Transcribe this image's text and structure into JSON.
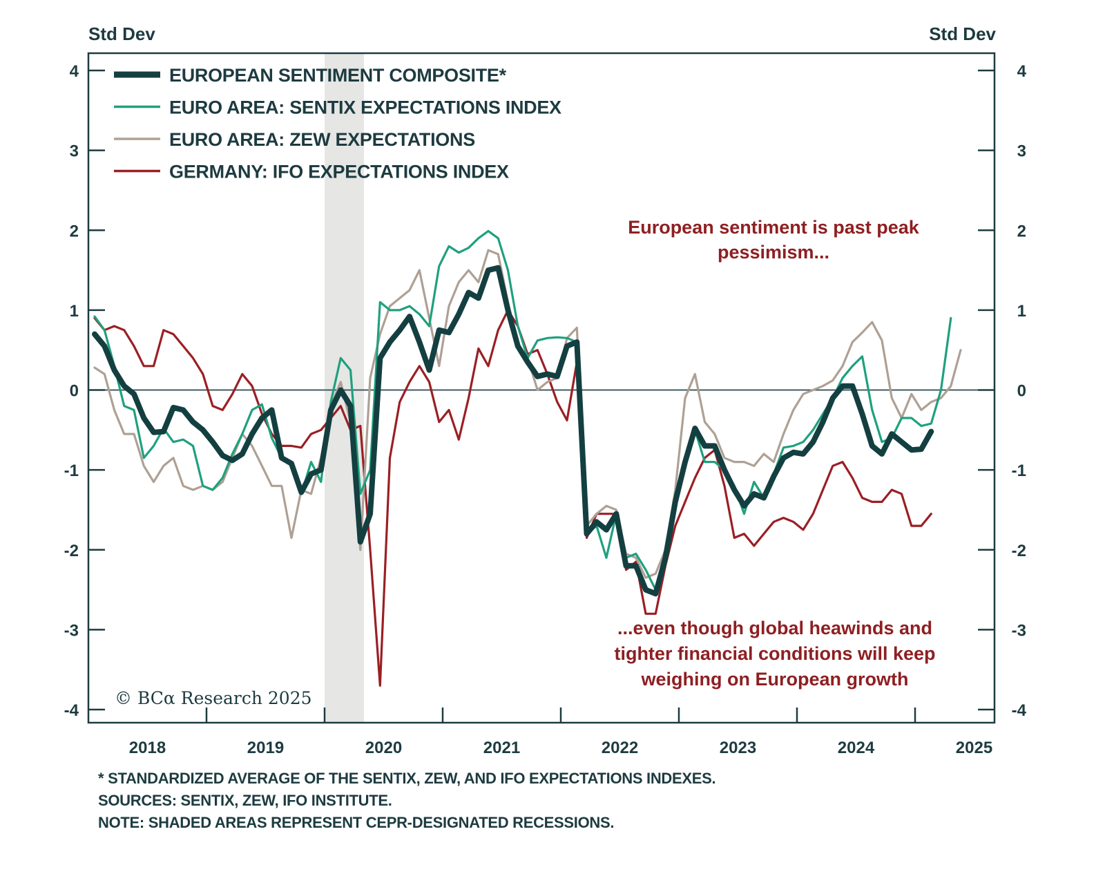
{
  "chart_data": {
    "type": "line",
    "title": "",
    "ylabel_left": "Std Dev",
    "ylabel_right": "Std Dev",
    "xlabel": "",
    "ylim": [
      -4,
      4
    ],
    "yticks": [
      4,
      3,
      2,
      1,
      0,
      -1,
      -2,
      -3,
      -4
    ],
    "ytick_labels": [
      "4",
      "3",
      "2",
      "1",
      "0",
      "-1",
      "-2",
      "-3",
      "-4"
    ],
    "x_start": "2018-01",
    "x_frequency": "monthly",
    "xlim": [
      "2018-01",
      "2025-08"
    ],
    "xtick_labels": [
      "2018",
      "2019",
      "2020",
      "2021",
      "2022",
      "2023",
      "2024",
      "2025"
    ],
    "zero_line": true,
    "grid": false,
    "legend_position": "top-left",
    "recessions": [
      {
        "start": "2020-01",
        "end": "2020-04"
      }
    ],
    "series": [
      {
        "name": "EUROPEAN SENTIMENT COMPOSITE*",
        "color": "#143f41",
        "weight": "thick",
        "values": [
          0.7,
          0.55,
          0.25,
          0.05,
          -0.05,
          -0.35,
          -0.53,
          -0.52,
          -0.22,
          -0.25,
          -0.4,
          -0.5,
          -0.65,
          -0.82,
          -0.88,
          -0.8,
          -0.55,
          -0.35,
          -0.25,
          -0.85,
          -0.92,
          -1.28,
          -1.05,
          -1.0,
          -0.25,
          0.0,
          -0.2,
          -1.9,
          -1.55,
          0.4,
          0.6,
          0.75,
          0.92,
          0.6,
          0.25,
          0.75,
          0.72,
          0.95,
          1.22,
          1.15,
          1.5,
          1.53,
          1.0,
          0.55,
          0.35,
          0.17,
          0.2,
          0.17,
          0.55,
          0.6,
          -1.8,
          -1.65,
          -1.75,
          -1.55,
          -2.2,
          -2.2,
          -2.5,
          -2.55,
          -2.1,
          -1.4,
          -0.9,
          -0.48,
          -0.7,
          -0.7,
          -1.0,
          -1.25,
          -1.45,
          -1.3,
          -1.35,
          -1.08,
          -0.85,
          -0.78,
          -0.8,
          -0.65,
          -0.4,
          -0.1,
          0.05,
          0.05,
          -0.3,
          -0.7,
          -0.8,
          -0.55,
          -0.65,
          -0.75,
          -0.74,
          -0.52
        ]
      },
      {
        "name": "EURO AREA: SENTIX EXPECTATIONS INDEX",
        "color": "#1fa07e",
        "weight": "thin",
        "values": [
          0.92,
          0.75,
          0.3,
          -0.2,
          -0.25,
          -0.85,
          -0.7,
          -0.48,
          -0.65,
          -0.62,
          -0.7,
          -1.2,
          -1.25,
          -1.1,
          -0.8,
          -0.55,
          -0.25,
          -0.18,
          -0.6,
          -0.85,
          -0.95,
          -1.3,
          -0.9,
          -1.15,
          -0.15,
          0.4,
          0.25,
          -1.3,
          -1.0,
          1.1,
          1.0,
          1.0,
          1.05,
          0.95,
          0.8,
          1.55,
          1.8,
          1.72,
          1.78,
          1.9,
          1.99,
          1.9,
          1.5,
          0.8,
          0.4,
          0.62,
          0.65,
          0.66,
          0.65,
          0.6,
          -1.8,
          -1.7,
          -2.1,
          -1.55,
          -2.1,
          -2.05,
          -2.25,
          -2.5,
          -2.1,
          -1.3,
          -0.9,
          -0.5,
          -0.9,
          -0.9,
          -1.0,
          -1.2,
          -1.55,
          -1.15,
          -1.35,
          -1.05,
          -0.72,
          -0.7,
          -0.65,
          -0.5,
          -0.3,
          -0.1,
          0.15,
          0.3,
          0.42,
          -0.25,
          -0.65,
          -0.6,
          -0.35,
          -0.35,
          -0.45,
          -0.42,
          0.0,
          0.9
        ]
      },
      {
        "name": "EURO AREA: ZEW EXPECTATIONS",
        "color": "#aea094",
        "weight": "thin",
        "values": [
          0.28,
          0.2,
          -0.25,
          -0.55,
          -0.55,
          -0.95,
          -1.15,
          -0.95,
          -0.85,
          -1.2,
          -1.25,
          -1.2,
          -1.25,
          -1.15,
          -0.85,
          -0.55,
          -0.7,
          -0.95,
          -1.2,
          -1.2,
          -1.85,
          -1.25,
          -1.3,
          -0.85,
          -0.2,
          0.1,
          -0.4,
          -2.0,
          0.15,
          0.7,
          1.05,
          1.15,
          1.25,
          1.5,
          0.9,
          0.3,
          1.05,
          1.35,
          1.5,
          1.35,
          1.75,
          1.7,
          1.1,
          0.55,
          0.4,
          0.0,
          0.1,
          0.15,
          0.65,
          0.78,
          -1.7,
          -1.55,
          -1.45,
          -1.5,
          -2.05,
          -2.1,
          -2.35,
          -2.3,
          -2.0,
          -1.25,
          -0.1,
          0.2,
          -0.4,
          -0.55,
          -0.85,
          -0.9,
          -0.9,
          -0.95,
          -0.8,
          -0.9,
          -0.55,
          -0.25,
          -0.05,
          0.0,
          0.05,
          0.12,
          0.3,
          0.6,
          0.72,
          0.85,
          0.62,
          -0.1,
          -0.35,
          -0.05,
          -0.25,
          -0.15,
          -0.1,
          0.05,
          0.5
        ]
      },
      {
        "name": "GERMANY: IFO EXPECTATIONS INDEX",
        "color": "#9a1f24",
        "weight": "thin",
        "values": [
          0.9,
          0.75,
          0.8,
          0.75,
          0.55,
          0.3,
          0.3,
          0.75,
          0.7,
          0.55,
          0.4,
          0.2,
          -0.2,
          -0.25,
          -0.05,
          0.2,
          0.05,
          -0.3,
          -0.55,
          -0.7,
          -0.7,
          -0.72,
          -0.55,
          -0.5,
          -0.35,
          -0.2,
          -0.5,
          -0.45,
          -2.0,
          -3.7,
          -0.85,
          -0.15,
          0.1,
          0.3,
          0.1,
          -0.4,
          -0.25,
          -0.62,
          -0.1,
          0.52,
          0.3,
          0.75,
          1.0,
          0.8,
          0.45,
          0.5,
          0.2,
          -0.15,
          -0.38,
          0.35,
          -1.85,
          -1.55,
          -1.55,
          -1.55,
          -2.25,
          -2.15,
          -2.8,
          -2.8,
          -2.2,
          -1.7,
          -1.4,
          -1.1,
          -0.85,
          -0.75,
          -1.2,
          -1.85,
          -1.8,
          -1.95,
          -1.8,
          -1.65,
          -1.6,
          -1.65,
          -1.75,
          -1.55,
          -1.25,
          -0.95,
          -0.9,
          -1.1,
          -1.35,
          -1.4,
          -1.4,
          -1.25,
          -1.3,
          -1.7,
          -1.7,
          -1.55
        ]
      }
    ],
    "annotations": [
      {
        "lines": [
          "European sentiment is past peak",
          "pessimism..."
        ],
        "color": "#8e1f22"
      },
      {
        "lines": [
          "...even though global heawinds and",
          "tighter financial conditions will keep",
          "weighing on European growth"
        ],
        "color": "#8e1f22"
      }
    ]
  },
  "copyright": "© BCα Research 2025",
  "footnotes": [
    "* STANDARDIZED AVERAGE OF THE SENTIX, ZEW, AND IFO EXPECTATIONS INDEXES.",
    "SOURCES: SENTIX, ZEW, IFO INSTITUTE.",
    "NOTE: SHADED AREAS REPRESENT CEPR-DESIGNATED RECESSIONS."
  ],
  "colors": {
    "axis": "#1d3b40",
    "recession_shade": "#e6e6e5",
    "annotation": "#8e1f22"
  }
}
